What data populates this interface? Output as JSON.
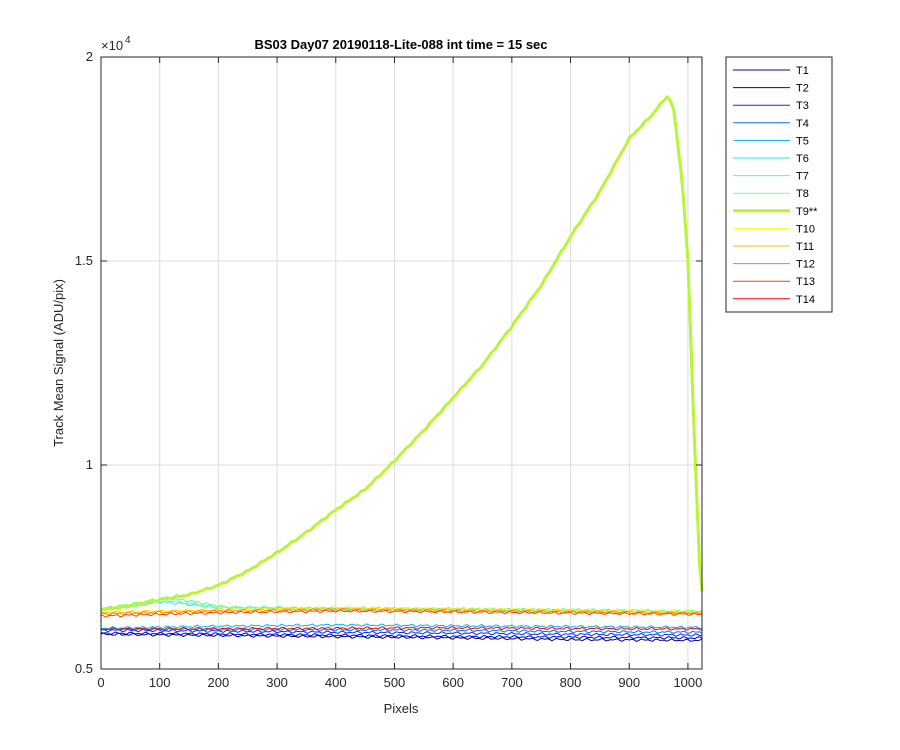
{
  "chart_data": {
    "type": "line",
    "title": "BS03 Day07 20190118-Lite-088 int time = 15 sec",
    "xlabel": "Pixels",
    "ylabel": "Track Mean Signal (ADU/pix)",
    "y_exponent_label": "×10",
    "y_exponent_power": "4",
    "xlim": [
      0,
      1024
    ],
    "ylim": [
      5000,
      20000
    ],
    "x_ticks": [
      0,
      100,
      200,
      300,
      400,
      500,
      600,
      700,
      800,
      900,
      1000
    ],
    "x_tick_labels": [
      "0",
      "100",
      "200",
      "300",
      "400",
      "500",
      "600",
      "700",
      "800",
      "900",
      "1000"
    ],
    "y_ticks": [
      5000,
      10000,
      15000,
      20000
    ],
    "y_tick_labels": [
      "0.5",
      "1",
      "1.5",
      "2"
    ],
    "grid": true,
    "legend_placement": "outside-right-top",
    "series": [
      {
        "name": "T1",
        "color": "#00008f",
        "width": 1,
        "x": [
          0,
          200,
          400,
          600,
          800,
          1024
        ],
        "y": [
          5850,
          5820,
          5790,
          5760,
          5720,
          5700
        ]
      },
      {
        "name": "T2",
        "color": "#0000d0",
        "width": 1,
        "x": [
          0,
          200,
          400,
          600,
          800,
          1024
        ],
        "y": [
          5880,
          5860,
          5830,
          5800,
          5780,
          5760
        ]
      },
      {
        "name": "T3",
        "color": "#0030ff",
        "width": 1,
        "x": [
          0,
          200,
          400,
          600,
          800,
          1024
        ],
        "y": [
          5950,
          5930,
          5900,
          5880,
          5850,
          5830
        ]
      },
      {
        "name": "T4",
        "color": "#0070ff",
        "width": 1,
        "x": [
          0,
          200,
          400,
          600,
          800,
          1024
        ],
        "y": [
          5980,
          5970,
          5960,
          5950,
          5920,
          5900
        ]
      },
      {
        "name": "T5",
        "color": "#00b0ff",
        "width": 1,
        "x": [
          0,
          200,
          400,
          600,
          800,
          1024
        ],
        "y": [
          6000,
          6050,
          6080,
          6060,
          6040,
          6020
        ]
      },
      {
        "name": "T6",
        "color": "#10f0ef",
        "width": 1,
        "x": [
          0,
          60,
          100,
          140,
          200,
          400,
          600,
          800,
          1024
        ],
        "y": [
          6450,
          6550,
          6650,
          6600,
          6500,
          6480,
          6460,
          6450,
          6400
        ]
      },
      {
        "name": "T7",
        "color": "#50ffaf",
        "width": 1,
        "x": [
          0,
          60,
          110,
          160,
          220,
          400,
          600,
          800,
          1024
        ],
        "y": [
          6450,
          6600,
          6750,
          6650,
          6500,
          6470,
          6450,
          6430,
          6400
        ]
      },
      {
        "name": "T8",
        "color": "#80ff80",
        "width": 1,
        "x": [
          0,
          60,
          100,
          150,
          200,
          400,
          600,
          800,
          1024
        ],
        "y": [
          6480,
          6620,
          6700,
          6620,
          6520,
          6500,
          6480,
          6450,
          6420
        ]
      },
      {
        "name": "T9**",
        "color": "#b8f536",
        "width": 3,
        "x": [
          0,
          50,
          100,
          150,
          200,
          250,
          300,
          350,
          400,
          450,
          500,
          550,
          600,
          650,
          700,
          750,
          800,
          850,
          900,
          940,
          965,
          975,
          990,
          1000,
          1010,
          1020,
          1024
        ],
        "y": [
          6450,
          6550,
          6700,
          6820,
          7050,
          7400,
          7850,
          8350,
          8900,
          9400,
          10100,
          10850,
          11650,
          12450,
          13400,
          14400,
          15600,
          16700,
          18000,
          18600,
          19050,
          18800,
          17000,
          15000,
          11000,
          7500,
          6900
        ]
      },
      {
        "name": "T10",
        "color": "#ffff10",
        "width": 1,
        "x": [
          0,
          200,
          400,
          600,
          800,
          1024
        ],
        "y": [
          6400,
          6460,
          6500,
          6480,
          6450,
          6400
        ]
      },
      {
        "name": "T11",
        "color": "#ffc000",
        "width": 1,
        "x": [
          0,
          200,
          400,
          600,
          800,
          1024
        ],
        "y": [
          6380,
          6440,
          6480,
          6460,
          6420,
          6380
        ]
      },
      {
        "name": "T12",
        "color": "#ff8000",
        "width": 1,
        "x": [
          0,
          200,
          400,
          600,
          800,
          1024
        ],
        "y": [
          6350,
          6420,
          6450,
          6420,
          6400,
          6360
        ]
      },
      {
        "name": "T13",
        "color": "#ff4000",
        "width": 1,
        "x": [
          0,
          200,
          400,
          600,
          800,
          1024
        ],
        "y": [
          6300,
          6380,
          6420,
          6400,
          6370,
          6340
        ]
      },
      {
        "name": "T14",
        "color": "#f00000",
        "width": 1,
        "x": [
          0,
          200,
          400,
          600,
          800,
          1024
        ],
        "y": [
          5980,
          5990,
          6000,
          6010,
          5990,
          5980
        ]
      }
    ]
  }
}
